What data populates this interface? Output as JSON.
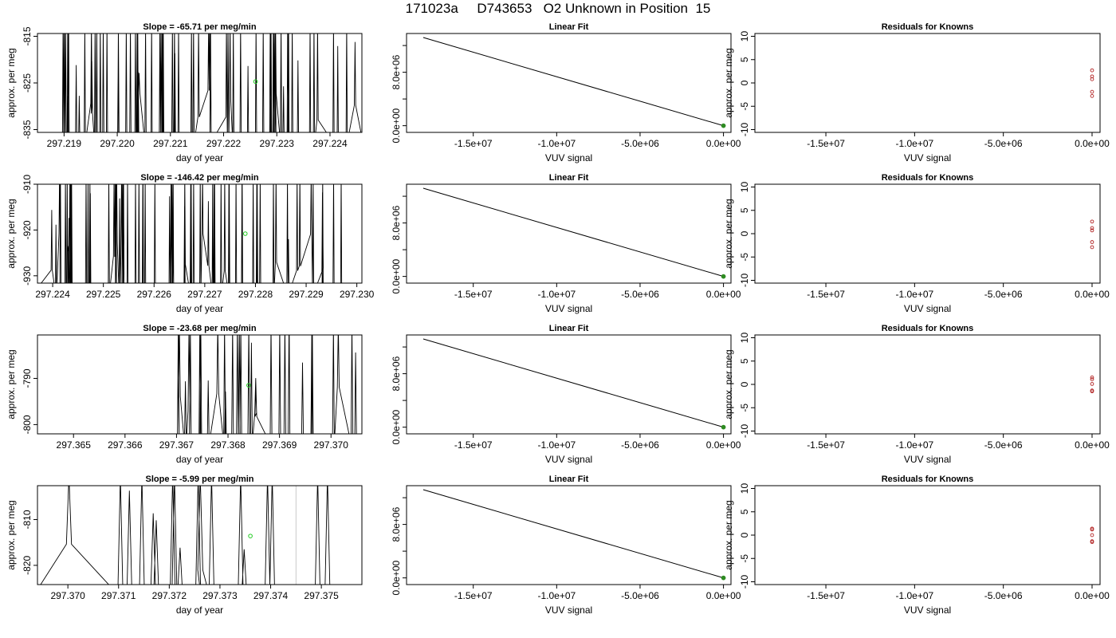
{
  "figure_title": "171023a     D743653   O2 Unknown in Position  15",
  "colors": {
    "frame": "#000000",
    "trace": "#000000",
    "unknown_point": "#22cc22",
    "fit_point": "#2e8b22",
    "residual_point": "#b22222",
    "reference_line": "#c8c8c8"
  },
  "chart_data": [
    {
      "type": "line",
      "title": "Slope =  -65.71  per meg/min",
      "xlabel": "day of year",
      "ylabel": "approx. per meg",
      "xlim": [
        297.2185,
        297.2246
      ],
      "ylim": [
        -835.6,
        -814.4
      ],
      "xticks": [
        297.219,
        297.22,
        297.221,
        297.222,
        297.223,
        297.224
      ],
      "xtick_labels": [
        "297.219",
        "297.220",
        "297.221",
        "297.222",
        "297.223",
        "297.224"
      ],
      "yticks": [
        -835,
        -825,
        -815
      ],
      "ytick_labels": [
        "-835",
        "-825",
        "-815"
      ],
      "seed": 11,
      "n_spikes": 70,
      "spike_range": [
        297.2188,
        297.2245
      ],
      "unknown_point": {
        "x": 297.2226,
        "y": -824.7
      },
      "ref_x": []
    },
    {
      "type": "line",
      "title": "Slope =  -146.42  per meg/min",
      "xlabel": "day of year",
      "ylabel": "approx. per meg",
      "xlim": [
        297.2237,
        297.2301
      ],
      "ylim": [
        -931.6,
        -910.0
      ],
      "xticks": [
        297.224,
        297.225,
        297.226,
        297.227,
        297.228,
        297.229,
        297.23
      ],
      "xtick_labels": [
        "297.224",
        "297.225",
        "297.226",
        "297.227",
        "297.228",
        "297.229",
        "297.230"
      ],
      "yticks": [
        -930,
        -920,
        -910
      ],
      "ytick_labels": [
        "-930",
        "-920",
        "-910"
      ],
      "seed": 23,
      "n_spikes": 75,
      "spike_range": [
        297.2239,
        297.2297
      ],
      "unknown_point": {
        "x": 297.2278,
        "y": -920.8
      },
      "ref_x": []
    },
    {
      "type": "line",
      "title": "Slope =  -23.68  per meg/min",
      "xlabel": "day of year",
      "ylabel": "approx. per meg",
      "xlim": [
        297.3643,
        297.3706
      ],
      "ylim": [
        -802.0,
        -780.6
      ],
      "xticks": [
        297.365,
        297.366,
        297.367,
        297.368,
        297.369,
        297.37
      ],
      "xtick_labels": [
        "297.365",
        "297.366",
        "297.367",
        "297.368",
        "297.369",
        "297.370"
      ],
      "yticks": [
        -800,
        -790
      ],
      "ytick_labels": [
        "-800",
        "-790"
      ],
      "seed": 37,
      "n_spikes": 30,
      "spike_range": [
        297.3669,
        297.3705
      ],
      "unknown_point": {
        "x": 297.3684,
        "y": -791.5
      },
      "ref_x": [
        297.3692
      ]
    },
    {
      "type": "line",
      "title": "Slope =  -5.99  per meg/min",
      "xlabel": "day of year",
      "ylabel": "approx. per meg",
      "xlim": [
        297.3694,
        297.3758
      ],
      "ylim": [
        -824.2,
        -802.6
      ],
      "xticks": [
        297.37,
        297.371,
        297.372,
        297.373,
        297.374,
        297.375
      ],
      "xtick_labels": [
        "297.370",
        "297.371",
        "297.372",
        "297.373",
        "297.374",
        "297.375"
      ],
      "yticks": [
        -820,
        -810
      ],
      "ytick_labels": [
        "-820",
        "-810"
      ],
      "seed": 51,
      "n_spikes": 18,
      "spike_range": [
        297.3695,
        297.3755
      ],
      "unknown_point": {
        "x": 297.3736,
        "y": -813.6
      },
      "ref_x": [
        297.3745
      ]
    },
    {
      "type": "line",
      "title": "Linear Fit",
      "xlabel": "VUV signal",
      "ylabel": "",
      "xlim": [
        -19000000.0,
        450000.0
      ],
      "ylim": [
        -1000000.0,
        13800000.0
      ],
      "xticks": [
        -15000000.0,
        -10000000.0,
        -5000000.0,
        0
      ],
      "xtick_labels": [
        "-1.5e+07",
        "-1.0e+07",
        "-5.0e+06",
        "0.0e+00"
      ],
      "yticks": [
        0,
        4000000.0,
        8000000.0,
        12000000.0
      ],
      "ytick_labels": [
        "0.0e+00",
        "",
        "8.0e+06",
        ""
      ],
      "line": {
        "x": [
          -18000000.0,
          0
        ],
        "y": [
          13200000.0,
          0
        ]
      },
      "points": {
        "x": [
          0
        ],
        "y": [
          0
        ]
      }
    },
    {
      "type": "line",
      "title": "Linear Fit",
      "xlabel": "VUV signal",
      "ylabel": "",
      "xlim": [
        -19000000.0,
        450000.0
      ],
      "ylim": [
        -1000000.0,
        13800000.0
      ],
      "xticks": [
        -15000000.0,
        -10000000.0,
        -5000000.0,
        0
      ],
      "xtick_labels": [
        "-1.5e+07",
        "-1.0e+07",
        "-5.0e+06",
        "0.0e+00"
      ],
      "yticks": [
        0,
        4000000.0,
        8000000.0,
        12000000.0
      ],
      "ytick_labels": [
        "0.0e+00",
        "",
        "8.0e+06",
        ""
      ],
      "line": {
        "x": [
          -18000000.0,
          0
        ],
        "y": [
          13200000.0,
          0
        ]
      },
      "points": {
        "x": [
          0
        ],
        "y": [
          0
        ]
      }
    },
    {
      "type": "line",
      "title": "Linear Fit",
      "xlabel": "VUV signal",
      "ylabel": "",
      "xlim": [
        -19000000.0,
        450000.0
      ],
      "ylim": [
        -1000000.0,
        13800000.0
      ],
      "xticks": [
        -15000000.0,
        -10000000.0,
        -5000000.0,
        0
      ],
      "xtick_labels": [
        "-1.5e+07",
        "-1.0e+07",
        "-5.0e+06",
        "0.0e+00"
      ],
      "yticks": [
        0,
        4000000.0,
        8000000.0,
        12000000.0
      ],
      "ytick_labels": [
        "0.0e+00",
        "",
        "8.0e+06",
        ""
      ],
      "line": {
        "x": [
          -18000000.0,
          0
        ],
        "y": [
          13200000.0,
          0
        ]
      },
      "points": {
        "x": [
          0
        ],
        "y": [
          0
        ]
      }
    },
    {
      "type": "line",
      "title": "Linear Fit",
      "xlabel": "VUV signal",
      "ylabel": "",
      "xlim": [
        -19000000.0,
        450000.0
      ],
      "ylim": [
        -1000000.0,
        13800000.0
      ],
      "xticks": [
        -15000000.0,
        -10000000.0,
        -5000000.0,
        0
      ],
      "xtick_labels": [
        "-1.5e+07",
        "-1.0e+07",
        "-5.0e+06",
        "0.0e+00"
      ],
      "yticks": [
        0,
        4000000.0,
        8000000.0,
        12000000.0
      ],
      "ytick_labels": [
        "0.0e+00",
        "",
        "8.0e+06",
        ""
      ],
      "line": {
        "x": [
          -18000000.0,
          0
        ],
        "y": [
          13200000.0,
          0
        ]
      },
      "points": {
        "x": [
          0
        ],
        "y": [
          0
        ]
      }
    },
    {
      "type": "scatter",
      "title": "Residuals for Knowns",
      "xlabel": "VUV signal",
      "ylabel": "approx. per meg",
      "xlim": [
        -19000000.0,
        450000.0
      ],
      "ylim": [
        -10.6,
        10.6
      ],
      "xticks": [
        -15000000.0,
        -10000000.0,
        -5000000.0,
        0
      ],
      "xtick_labels": [
        "-1.5e+07",
        "-1.0e+07",
        "-5.0e+06",
        "0.0e+00"
      ],
      "yticks": [
        -10,
        -5,
        0,
        5,
        10
      ],
      "ytick_labels": [
        "-10",
        "-5",
        "0",
        "5",
        "10"
      ],
      "points": {
        "x": [
          0,
          0,
          0,
          0,
          0
        ],
        "y": [
          2.7,
          1.4,
          0.8,
          -1.9,
          -2.8
        ]
      }
    },
    {
      "type": "scatter",
      "title": "Residuals for Knowns",
      "xlabel": "VUV signal",
      "ylabel": "approx. per meg",
      "xlim": [
        -19000000.0,
        450000.0
      ],
      "ylim": [
        -10.6,
        10.6
      ],
      "xticks": [
        -15000000.0,
        -10000000.0,
        -5000000.0,
        0
      ],
      "xtick_labels": [
        "-1.5e+07",
        "-1.0e+07",
        "-5.0e+06",
        "0.0e+00"
      ],
      "yticks": [
        -10,
        -5,
        0,
        5,
        10
      ],
      "ytick_labels": [
        "-10",
        "-5",
        "0",
        "5",
        "10"
      ],
      "points": {
        "x": [
          0,
          0,
          0,
          0,
          0
        ],
        "y": [
          2.6,
          1.2,
          0.7,
          -1.8,
          -2.9
        ]
      }
    },
    {
      "type": "scatter",
      "title": "Residuals for Knowns",
      "xlabel": "VUV signal",
      "ylabel": "approx. per meg",
      "xlim": [
        -19000000.0,
        450000.0
      ],
      "ylim": [
        -10.6,
        10.6
      ],
      "xticks": [
        -15000000.0,
        -10000000.0,
        -5000000.0,
        0
      ],
      "xtick_labels": [
        "-1.5e+07",
        "-1.0e+07",
        "-5.0e+06",
        "0.0e+00"
      ],
      "yticks": [
        -10,
        -5,
        0,
        5,
        10
      ],
      "ytick_labels": [
        "-10",
        "-5",
        "0",
        "5",
        "10"
      ],
      "points": {
        "x": [
          0,
          0,
          0,
          0,
          0
        ],
        "y": [
          1.5,
          1.1,
          0.1,
          -1.3,
          -1.5
        ]
      }
    },
    {
      "type": "scatter",
      "title": "Residuals for Knowns",
      "xlabel": "VUV signal",
      "ylabel": "approx. per meg",
      "xlim": [
        -19000000.0,
        450000.0
      ],
      "ylim": [
        -10.6,
        10.6
      ],
      "xticks": [
        -15000000.0,
        -10000000.0,
        -5000000.0,
        0
      ],
      "xtick_labels": [
        "-1.5e+07",
        "-1.0e+07",
        "-5.0e+06",
        "0.0e+00"
      ],
      "yticks": [
        -10,
        -5,
        0,
        5,
        10
      ],
      "ytick_labels": [
        "-10",
        "-5",
        "0",
        "5",
        "10"
      ],
      "points": {
        "x": [
          0,
          0,
          0,
          0,
          0
        ],
        "y": [
          1.4,
          1.2,
          0.0,
          -1.3,
          -1.5
        ]
      }
    }
  ]
}
